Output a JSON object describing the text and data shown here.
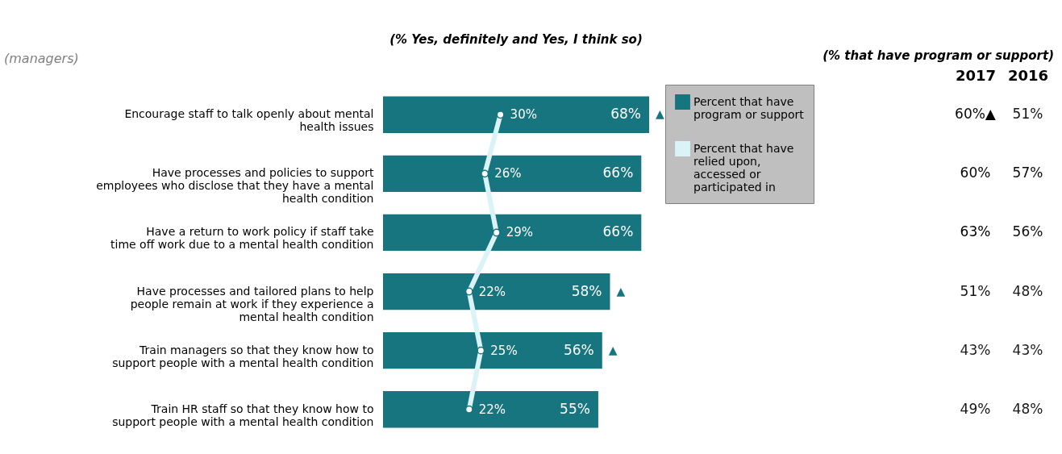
{
  "chart_data": [
    {
      "type": "bar",
      "orientation": "horizontal",
      "title": "(% Yes, definitely and Yes, I think so)",
      "categories": [
        "Encourage staff to talk openly about mental health issues",
        "Have processes and policies to support employees who disclose that they have a mental health condition",
        "Have a return to work policy if staff take time off work due to a mental health condition",
        "Have processes and tailored plans to help people remain at work if they experience a mental health condition",
        "Train managers so that they know how to support people with a mental health condition",
        "Train HR staff so that they know how to support people with a mental health condition"
      ],
      "series": [
        {
          "name": "Percent that have program or support",
          "type": "bar",
          "color": "#17757f",
          "values": [
            68,
            66,
            66,
            58,
            56,
            55
          ],
          "value_labels": [
            "68%",
            "66%",
            "66%",
            "58%",
            "56%",
            "55%"
          ]
        },
        {
          "name": "Percent that have relied upon, accessed or participated in",
          "type": "line",
          "color": "#d9f3f7",
          "values": [
            30,
            26,
            29,
            22,
            25,
            22
          ],
          "value_labels": [
            "30%",
            "26%",
            "29%",
            "22%",
            "25%",
            "22%"
          ]
        }
      ],
      "marker": "circle",
      "legend": "right",
      "grid": false,
      "tick_labels": "y",
      "annotations": [
        "(managers)",
        {
          "text": "▲",
          "x": 68,
          "y": "Encourage staff to talk openly about mental health issues"
        },
        {
          "text": "▲",
          "x": 58,
          "y": "Have processes and tailored plans to help people remain at work if they experience a mental health condition"
        },
        {
          "text": "▲",
          "x": 56,
          "y": "Train managers so that they know how to support people with a mental health condition"
        }
      ]
    },
    {
      "type": "heatmap",
      "title": "(% that have program or support)",
      "categories": [
        "2017",
        "2016"
      ],
      "y_categories": [
        null,
        null,
        null,
        null,
        null,
        null
      ],
      "cells": [
        [
          60,
          51
        ],
        [
          60,
          57
        ],
        [
          63,
          56
        ],
        [
          51,
          48
        ],
        [
          43,
          43
        ],
        [
          49,
          48
        ]
      ],
      "cell_labels": [
        [
          "60%▲",
          "51%"
        ],
        [
          "60%",
          "57%"
        ],
        [
          "63%",
          "56%"
        ],
        [
          "51%",
          "48%"
        ],
        [
          "43%",
          "43%"
        ],
        [
          "49%",
          "48%"
        ]
      ]
    }
  ]
}
